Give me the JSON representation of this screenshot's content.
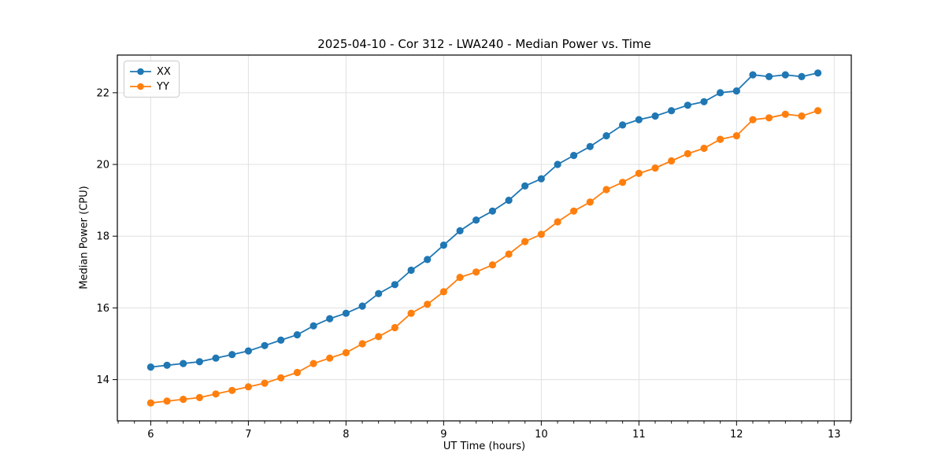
{
  "chart_data": {
    "type": "line",
    "title": "2025-04-10 - Cor 312 - LWA240 - Median Power vs. Time",
    "xlabel": "UT Time (hours)",
    "ylabel": "Median Power (CPU)",
    "xlim": [
      5.658,
      13.175
    ],
    "ylim": [
      12.85,
      23.05
    ],
    "xticks": [
      6,
      7,
      8,
      9,
      10,
      11,
      12,
      13
    ],
    "yticks": [
      14,
      16,
      18,
      20,
      22
    ],
    "minor_ticks_x_per_hour": 6,
    "grid": true,
    "grid_color": "#e0e0e0",
    "spine_color": "#000000",
    "background_color": "#ffffff",
    "legend_position": "upper left",
    "marker": "circle",
    "x": [
      6.0,
      6.167,
      6.333,
      6.5,
      6.667,
      6.833,
      7.0,
      7.167,
      7.333,
      7.5,
      7.667,
      7.833,
      8.0,
      8.167,
      8.333,
      8.5,
      8.667,
      8.833,
      9.0,
      9.167,
      9.333,
      9.5,
      9.667,
      9.833,
      10.0,
      10.167,
      10.333,
      10.5,
      10.667,
      10.833,
      11.0,
      11.167,
      11.333,
      11.5,
      11.667,
      11.833,
      12.0,
      12.167,
      12.333,
      12.5,
      12.667,
      12.833
    ],
    "series": [
      {
        "name": "XX",
        "color": "#1f77b4",
        "values": [
          14.35,
          14.4,
          14.45,
          14.5,
          14.6,
          14.7,
          14.8,
          14.95,
          15.1,
          15.25,
          15.5,
          15.7,
          15.85,
          16.05,
          16.4,
          16.65,
          17.05,
          17.35,
          17.75,
          18.15,
          18.45,
          18.7,
          19.0,
          19.4,
          19.6,
          20.0,
          20.25,
          20.5,
          20.8,
          21.1,
          21.25,
          21.35,
          21.5,
          21.65,
          21.75,
          22.0,
          22.05,
          22.5,
          22.45,
          22.5,
          22.45,
          22.55
        ]
      },
      {
        "name": "YY",
        "color": "#ff7f0e",
        "values": [
          13.35,
          13.4,
          13.45,
          13.5,
          13.6,
          13.7,
          13.8,
          13.9,
          14.05,
          14.2,
          14.45,
          14.6,
          14.75,
          15.0,
          15.2,
          15.45,
          15.85,
          16.1,
          16.45,
          16.85,
          17.0,
          17.2,
          17.5,
          17.85,
          18.05,
          18.4,
          18.7,
          18.95,
          19.3,
          19.5,
          19.75,
          19.9,
          20.1,
          20.3,
          20.45,
          20.7,
          20.8,
          21.25,
          21.3,
          21.4,
          21.35,
          21.5
        ]
      }
    ]
  }
}
